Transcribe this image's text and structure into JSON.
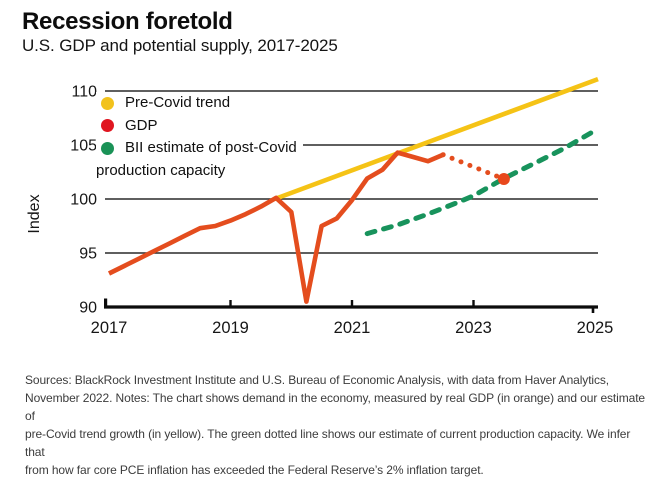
{
  "header": {
    "title": "Recession foretold",
    "subtitle": "U.S. GDP and potential supply, 2017-2025"
  },
  "legend": {
    "items": [
      {
        "label": "Pre-Covid trend",
        "color": "#F2C21C"
      },
      {
        "label": "GDP",
        "color": "#E01620"
      },
      {
        "label": "BII estimate of post-Covid",
        "color": "#1A9257"
      }
    ],
    "item3_wrap": "production capacity"
  },
  "chart_data": {
    "type": "line",
    "title": "Recession foretold",
    "subtitle": "U.S. GDP and potential supply, 2017-2025",
    "xlabel": "",
    "ylabel": "Index",
    "ylim": [
      90,
      111.5
    ],
    "xlim": [
      2017,
      2025.05
    ],
    "y_ticks": [
      110,
      105,
      100,
      95,
      90
    ],
    "x_ticks": [
      2017,
      2019,
      2021,
      2023,
      2025
    ],
    "grid": true,
    "grid_color": "#2a2a2a",
    "axis_color": "#0c0c0c",
    "legend_position": "upper-left-inside",
    "series": [
      {
        "name": "Pre-Covid trend",
        "color": "#F5C316",
        "style": "solid",
        "width": 4.6,
        "points": [
          [
            2019.73,
            100.0
          ],
          [
            2025.05,
            111.1
          ]
        ]
      },
      {
        "name": "BII estimate of post-Covid production capacity",
        "color": "#18935C",
        "style": "dashed",
        "width": 5,
        "points": [
          [
            2021.25,
            96.8
          ],
          [
            2021.75,
            97.6
          ],
          [
            2022.25,
            98.6
          ],
          [
            2022.75,
            99.7
          ],
          [
            2023.0,
            100.3
          ],
          [
            2023.5,
            101.9
          ],
          [
            2024.0,
            103.3
          ],
          [
            2024.5,
            104.7
          ],
          [
            2025.05,
            106.5
          ]
        ]
      },
      {
        "name": "GDP",
        "color": "#E44D1E",
        "style": "solid",
        "width": 4.6,
        "points": [
          [
            2017.0,
            93.1
          ],
          [
            2017.25,
            93.8
          ],
          [
            2017.5,
            94.5
          ],
          [
            2017.75,
            95.2
          ],
          [
            2018.0,
            95.9
          ],
          [
            2018.25,
            96.6
          ],
          [
            2018.5,
            97.3
          ],
          [
            2018.75,
            97.5
          ],
          [
            2019.0,
            98.0
          ],
          [
            2019.25,
            98.6
          ],
          [
            2019.5,
            99.3
          ],
          [
            2019.75,
            100.1
          ],
          [
            2020.0,
            98.8
          ],
          [
            2020.25,
            90.5
          ],
          [
            2020.5,
            97.5
          ],
          [
            2020.75,
            98.2
          ],
          [
            2021.0,
            99.9
          ],
          [
            2021.25,
            101.9
          ],
          [
            2021.5,
            102.7
          ],
          [
            2021.75,
            104.3
          ],
          [
            2022.0,
            103.9
          ],
          [
            2022.25,
            103.5
          ],
          [
            2022.5,
            104.1
          ]
        ]
      },
      {
        "name": "GDP projection (dotted)",
        "color": "#E44D1E",
        "style": "dotted",
        "width": 5,
        "points": [
          [
            2022.5,
            104.1
          ],
          [
            2023.5,
            101.85
          ]
        ]
      }
    ],
    "end_marker": {
      "x": 2023.5,
      "y": 101.85,
      "radius": 6,
      "color": "#E8481C"
    }
  },
  "footer": {
    "lines": [
      "Sources: BlackRock Investment Institute and U.S. Bureau of Economic Analysis, with data from Haver Analytics,",
      "November 2022. Notes: The chart shows demand in the economy, measured by real GDP (in orange) and our estimate of",
      "pre-Covid trend growth (in yellow). The green dotted line shows our estimate of current production capacity. We infer that",
      "from how far core PCE inflation has exceeded the Federal Reserve’s 2% inflation target."
    ]
  }
}
